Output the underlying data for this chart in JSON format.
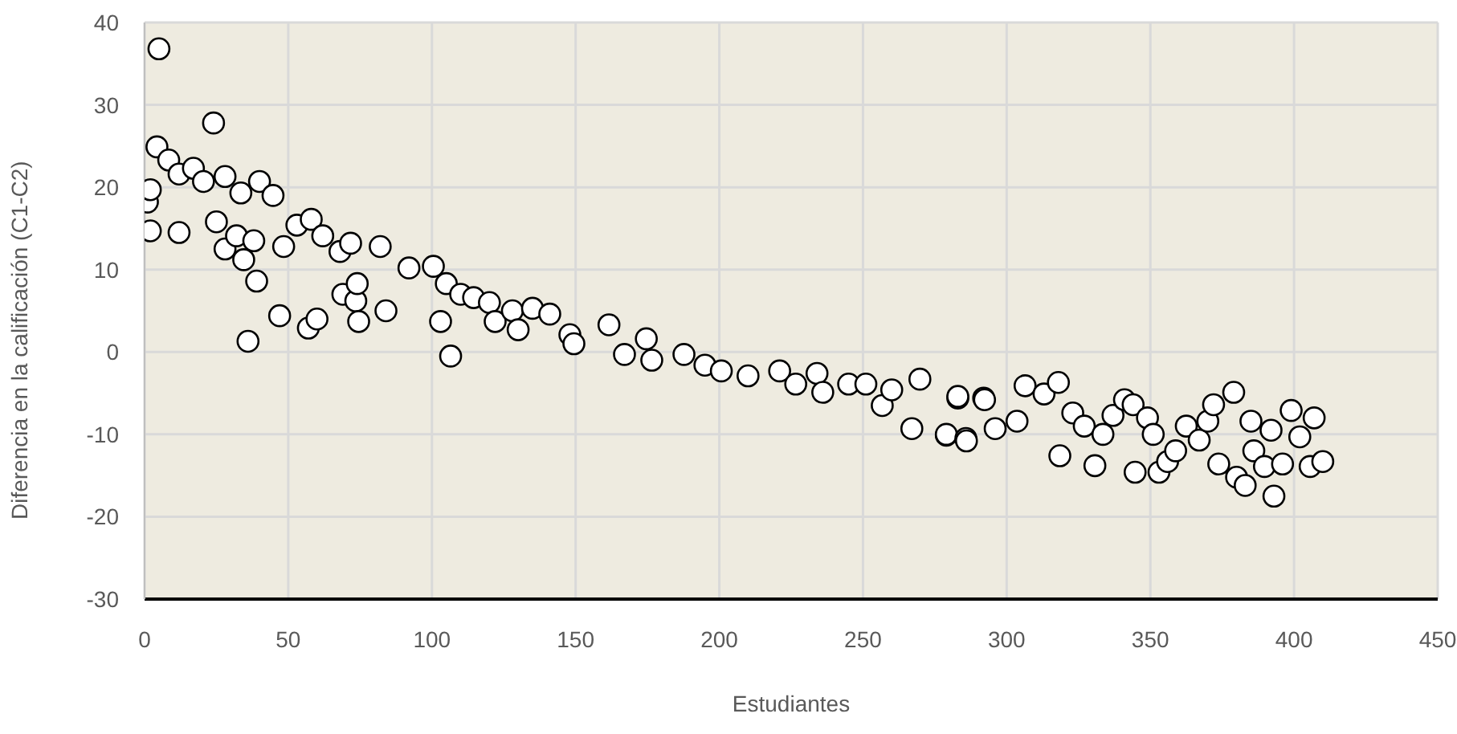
{
  "chart_data": {
    "type": "scatter",
    "xlabel": "Estudiantes",
    "ylabel": "Diferencia en la calificación (C1-C2)",
    "xlim": [
      0,
      450
    ],
    "xticks": [
      0,
      50,
      100,
      150,
      200,
      250,
      300,
      350,
      400,
      450
    ],
    "ylim": [
      -30,
      40
    ],
    "yticks": [
      -30,
      -20,
      -10,
      0,
      10,
      20,
      30,
      40
    ],
    "grid": true,
    "marker": "circle",
    "legend": false,
    "x": [
      1,
      2,
      2,
      4.3,
      5,
      8.4,
      12,
      12,
      17,
      20.5,
      24,
      25,
      28,
      28,
      32,
      33.5,
      34.5,
      36,
      38,
      39,
      40,
      44.7,
      47,
      48.4,
      53,
      57,
      58,
      60,
      62,
      68,
      69,
      71.7,
      73.5,
      74,
      74.5,
      82,
      84,
      92,
      100.5,
      103,
      105,
      106.5,
      110,
      114.5,
      120,
      122,
      128,
      130,
      135,
      141,
      148,
      149.4,
      161.6,
      167,
      174.6,
      176.5,
      187.7,
      195,
      200.7,
      210,
      221,
      226.6,
      234,
      236,
      245,
      251,
      256.7,
      260,
      267,
      269.8,
      279,
      279,
      283,
      283,
      285.8,
      286,
      292,
      292.3,
      296,
      303.6,
      306.4,
      313,
      318,
      318.5,
      323,
      327,
      330.7,
      333.5,
      337,
      341,
      344,
      344.7,
      349,
      351,
      353,
      356,
      358.8,
      362.5,
      367,
      370,
      372,
      373.8,
      379,
      380,
      383,
      385,
      386,
      389.7,
      392,
      393,
      396,
      399,
      402,
      405.6,
      407,
      410
    ],
    "values": [
      18.2,
      19.7,
      14.7,
      24.9,
      36.8,
      23.3,
      21.6,
      14.5,
      22.3,
      20.7,
      27.8,
      15.8,
      21.3,
      12.5,
      14.1,
      19.3,
      11.2,
      1.3,
      13.5,
      8.6,
      20.7,
      19,
      4.4,
      12.8,
      15.4,
      2.9,
      16.1,
      4,
      14.1,
      12.2,
      7,
      13.2,
      6.2,
      8.3,
      3.7,
      12.8,
      5,
      10.2,
      10.4,
      3.7,
      8.3,
      -0.5,
      7,
      6.6,
      6,
      3.7,
      5,
      2.7,
      5.3,
      4.6,
      2.1,
      1,
      3.3,
      -0.3,
      1.6,
      -1,
      -0.3,
      -1.6,
      -2.3,
      -2.9,
      -2.3,
      -3.9,
      -2.6,
      -4.9,
      -3.9,
      -3.9,
      -6.5,
      -4.6,
      -9.3,
      -3.3,
      -10.1,
      -10,
      -5.6,
      -5.4,
      -10.5,
      -10.8,
      -5.6,
      -5.8,
      -9.3,
      -8.4,
      -4.1,
      -5.1,
      -3.7,
      -12.6,
      -7.4,
      -9,
      -13.8,
      -10,
      -7.7,
      -5.8,
      -6.4,
      -14.6,
      -8,
      -10,
      -14.6,
      -13.3,
      -12,
      -9,
      -10.7,
      -8.4,
      -6.4,
      -13.6,
      -4.9,
      -15.2,
      -16.2,
      -8.4,
      -12,
      -13.9,
      -9.5,
      -17.5,
      -13.6,
      -7.1,
      -10.3,
      -13.9,
      -8,
      -13.3
    ],
    "color": "#ffffff"
  }
}
